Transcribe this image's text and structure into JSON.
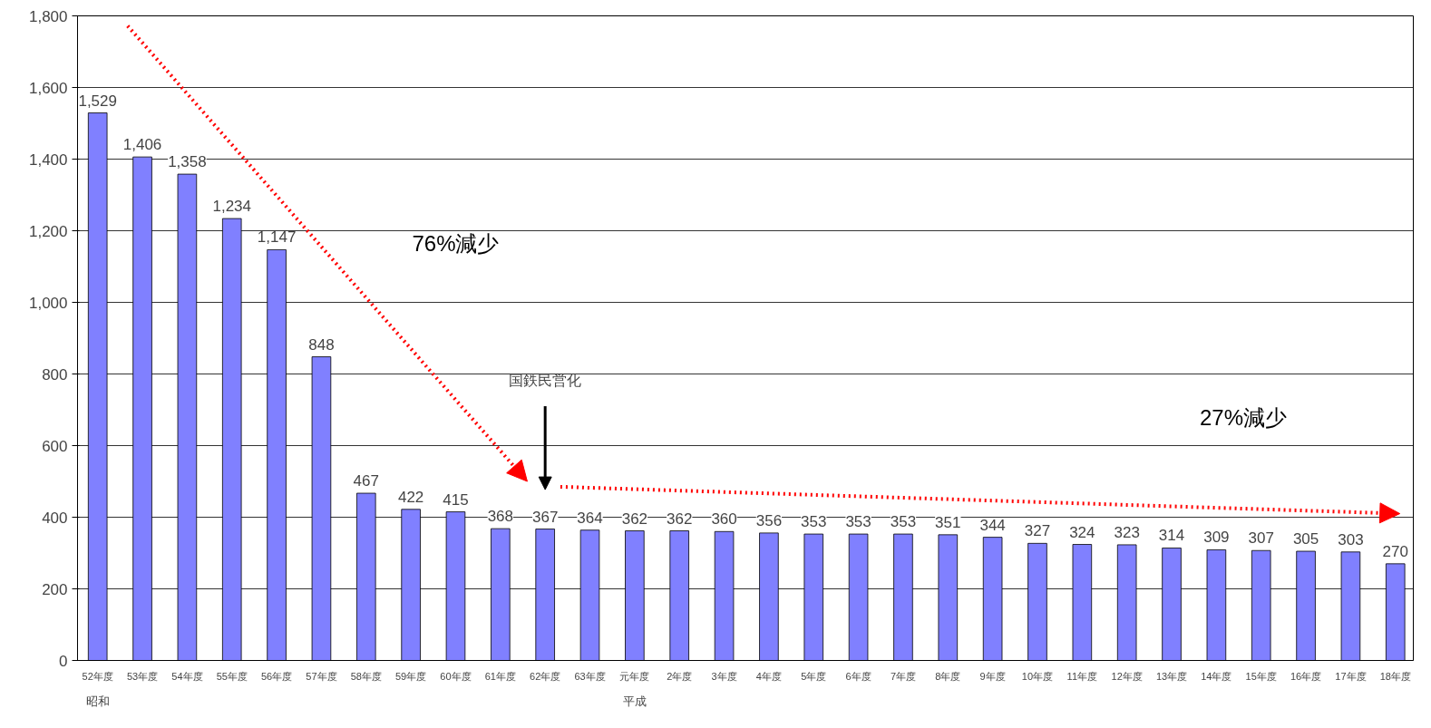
{
  "chart_data": {
    "type": "bar",
    "categories": [
      "52年度",
      "53年度",
      "54年度",
      "55年度",
      "56年度",
      "57年度",
      "58年度",
      "59年度",
      "60年度",
      "61年度",
      "62年度",
      "63年度",
      "元年度",
      "2年度",
      "3年度",
      "4年度",
      "5年度",
      "6年度",
      "7年度",
      "8年度",
      "9年度",
      "10年度",
      "11年度",
      "12年度",
      "13年度",
      "14年度",
      "15年度",
      "16年度",
      "17年度",
      "18年度"
    ],
    "values": [
      1529,
      1406,
      1358,
      1234,
      1147,
      848,
      467,
      422,
      415,
      368,
      367,
      364,
      362,
      362,
      360,
      356,
      353,
      353,
      353,
      351,
      344,
      327,
      324,
      323,
      314,
      309,
      307,
      305,
      303,
      270
    ],
    "value_labels": [
      "1,529",
      "1,406",
      "1,358",
      "1,234",
      "1,147",
      "848",
      "467",
      "422",
      "415",
      "368",
      "367",
      "364",
      "362",
      "362",
      "360",
      "356",
      "353",
      "353",
      "353",
      "351",
      "344",
      "327",
      "324",
      "323",
      "314",
      "309",
      "307",
      "305",
      "303",
      "270"
    ],
    "color": "#8080ff",
    "ylim": [
      0,
      1800
    ],
    "yticks": [
      0,
      200,
      400,
      600,
      800,
      {
        "value": 1000,
        "label": "1,000"
      },
      {
        "value": 1200,
        "label": "1,200"
      },
      {
        "value": 1400,
        "label": "1,400"
      },
      {
        "value": 1600,
        "label": "1,600"
      },
      {
        "value": 1800,
        "label": "1,800"
      }
    ],
    "grid": "y",
    "annotations": [
      "76%減少",
      "27%減少",
      "国鉄民営化",
      "昭和",
      "平成"
    ]
  }
}
